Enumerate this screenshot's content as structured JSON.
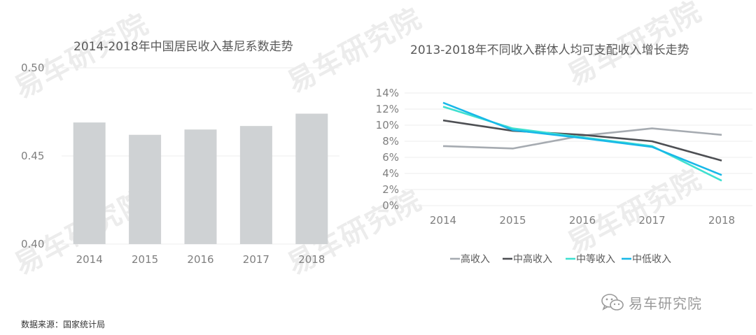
{
  "watermark_text": "易车研究院",
  "left_chart": {
    "title": "2014-2018年中国居民收入基尼系数走势"
  },
  "right_chart": {
    "title": "2013-2018年不同收入群体人均可支配收入增长走势"
  },
  "source": "数据来源：国家统计局",
  "brand": {
    "text": "易车研究院",
    "icon": "wechat-icon"
  },
  "chart_data": [
    {
      "type": "bar",
      "title": "2014-2018年中国居民收入基尼系数走势",
      "categories": [
        "2014",
        "2015",
        "2016",
        "2017",
        "2018"
      ],
      "values": [
        0.469,
        0.462,
        0.465,
        0.467,
        0.474
      ],
      "ylim": [
        0.4,
        0.5
      ],
      "yticks": [
        "0.50",
        "0.45",
        "0.40"
      ],
      "ytick_values": [
        0.5,
        0.45,
        0.4
      ],
      "bar_color": "#cfd2d4",
      "grid": true,
      "xlabel": "",
      "ylabel": ""
    },
    {
      "type": "line",
      "title": "2013-2018年不同收入群体人均可支配收入增长走势",
      "x": [
        "2014",
        "2015",
        "2016",
        "2017",
        "2018"
      ],
      "ylim": [
        0,
        14
      ],
      "yticks": [
        "14%",
        "12%",
        "10%",
        "8%",
        "6%",
        "4%",
        "2%",
        "0%"
      ],
      "ytick_values": [
        14,
        12,
        10,
        8,
        6,
        4,
        2,
        0
      ],
      "grid": true,
      "legend_position": "bottom",
      "series": [
        {
          "name": "高收入",
          "color": "#a6abb1",
          "values": [
            7.4,
            7.1,
            8.7,
            9.6,
            8.8
          ]
        },
        {
          "name": "中高收入",
          "color": "#4d4f53",
          "values": [
            10.6,
            9.3,
            8.8,
            8.0,
            5.6
          ]
        },
        {
          "name": "中等收入",
          "color": "#3fe0d0",
          "values": [
            12.3,
            9.6,
            8.5,
            7.4,
            3.1
          ]
        },
        {
          "name": "中低收入",
          "color": "#18b8e8",
          "values": [
            12.8,
            9.4,
            8.4,
            7.3,
            3.8
          ]
        }
      ]
    }
  ]
}
